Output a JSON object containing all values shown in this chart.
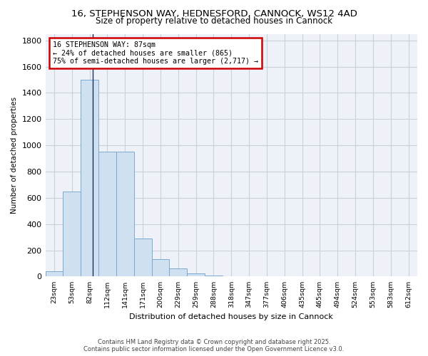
{
  "title_line1": "16, STEPHENSON WAY, HEDNESFORD, CANNOCK, WS12 4AD",
  "title_line2": "Size of property relative to detached houses in Cannock",
  "xlabel": "Distribution of detached houses by size in Cannock",
  "ylabel": "Number of detached properties",
  "categories": [
    "23sqm",
    "53sqm",
    "82sqm",
    "112sqm",
    "141sqm",
    "171sqm",
    "200sqm",
    "229sqm",
    "259sqm",
    "288sqm",
    "318sqm",
    "347sqm",
    "377sqm",
    "406sqm",
    "435sqm",
    "465sqm",
    "494sqm",
    "524sqm",
    "553sqm",
    "583sqm",
    "612sqm"
  ],
  "values": [
    40,
    650,
    1500,
    950,
    950,
    290,
    130,
    60,
    25,
    10,
    0,
    0,
    0,
    0,
    0,
    0,
    0,
    0,
    0,
    0,
    0
  ],
  "bar_color": "#cfe0f0",
  "bar_edge_color": "#7aaad0",
  "vline_color": "#1a2e5a",
  "vline_x_index": 2,
  "annotation_text": "16 STEPHENSON WAY: 87sqm\n← 24% of detached houses are smaller (865)\n75% of semi-detached houses are larger (2,717) →",
  "annotation_box_color": "#ffffff",
  "annotation_box_edge": "#cc0000",
  "background_color": "#ffffff",
  "plot_bg_color": "#eef2f8",
  "grid_color": "#c8d0dc",
  "ylim": [
    0,
    1850
  ],
  "yticks": [
    0,
    200,
    400,
    600,
    800,
    1000,
    1200,
    1400,
    1600,
    1800
  ],
  "footer_line1": "Contains HM Land Registry data © Crown copyright and database right 2025.",
  "footer_line2": "Contains public sector information licensed under the Open Government Licence v3.0."
}
